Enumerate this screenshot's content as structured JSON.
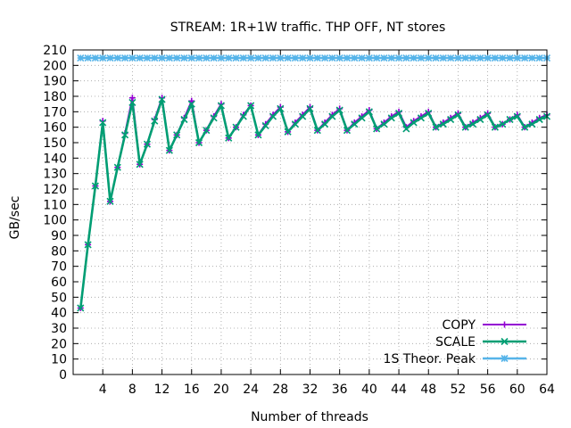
{
  "chart_data": {
    "type": "line",
    "title": "STREAM: 1R+1W traffic. THP OFF, NT stores",
    "xlabel": "Number of threads",
    "ylabel": "GB/sec",
    "xlim": [
      0,
      64
    ],
    "ylim": [
      0,
      210
    ],
    "xticks": [
      4,
      8,
      12,
      16,
      20,
      24,
      28,
      32,
      36,
      40,
      44,
      48,
      52,
      56,
      60,
      64
    ],
    "yticks": [
      0,
      10,
      20,
      30,
      40,
      50,
      60,
      70,
      80,
      90,
      100,
      110,
      120,
      130,
      140,
      150,
      160,
      170,
      180,
      190,
      200,
      210
    ],
    "grid": true,
    "legend_position": "bottom-right",
    "series": [
      {
        "name": "COPY",
        "color": "#9400d3",
        "marker": "plus",
        "x": [
          1,
          2,
          3,
          4,
          5,
          6,
          7,
          8,
          9,
          10,
          11,
          12,
          13,
          14,
          15,
          16,
          17,
          18,
          19,
          20,
          21,
          22,
          23,
          24,
          25,
          26,
          27,
          28,
          29,
          30,
          31,
          32,
          33,
          34,
          35,
          36,
          37,
          38,
          39,
          40,
          41,
          42,
          43,
          44,
          45,
          46,
          47,
          48,
          49,
          50,
          51,
          52,
          53,
          54,
          55,
          56,
          57,
          58,
          59,
          60,
          61,
          62,
          63,
          64
        ],
        "y": [
          43,
          84,
          122,
          164,
          112,
          134,
          156,
          179,
          136,
          149,
          165,
          179,
          145,
          155,
          166,
          177,
          150,
          158,
          167,
          175,
          153,
          160,
          168,
          174,
          155,
          162,
          168,
          173,
          157,
          163,
          168,
          173,
          158,
          163,
          168,
          172,
          158,
          163,
          167,
          171,
          159,
          163,
          167,
          170,
          160,
          164,
          167,
          170,
          160,
          163,
          166,
          169,
          160,
          163,
          166,
          169,
          160,
          162,
          165,
          168,
          160,
          163,
          166,
          168
        ]
      },
      {
        "name": "SCALE",
        "color": "#009e73",
        "marker": "cross",
        "x": [
          1,
          2,
          3,
          4,
          5,
          6,
          7,
          8,
          9,
          10,
          11,
          12,
          13,
          14,
          15,
          16,
          17,
          18,
          19,
          20,
          21,
          22,
          23,
          24,
          25,
          26,
          27,
          28,
          29,
          30,
          31,
          32,
          33,
          34,
          35,
          36,
          37,
          38,
          39,
          40,
          41,
          42,
          43,
          44,
          45,
          46,
          47,
          48,
          49,
          50,
          51,
          52,
          53,
          54,
          55,
          56,
          57,
          58,
          59,
          60,
          61,
          62,
          63,
          64
        ],
        "y": [
          43,
          84,
          122,
          163,
          112,
          134,
          155,
          176,
          136,
          149,
          164,
          178,
          145,
          155,
          165,
          175,
          150,
          158,
          166,
          174,
          153,
          160,
          167,
          174,
          155,
          161,
          167,
          172,
          157,
          162,
          167,
          172,
          158,
          162,
          167,
          171,
          158,
          162,
          166,
          170,
          159,
          162,
          166,
          169,
          159,
          163,
          166,
          169,
          160,
          162,
          165,
          168,
          160,
          162,
          165,
          168,
          160,
          162,
          165,
          167,
          160,
          162,
          165,
          167
        ]
      },
      {
        "name": "1S Theor. Peak",
        "color": "#56b4e9",
        "marker": "star",
        "x": [
          1,
          2,
          3,
          4,
          5,
          6,
          7,
          8,
          9,
          10,
          11,
          12,
          13,
          14,
          15,
          16,
          17,
          18,
          19,
          20,
          21,
          22,
          23,
          24,
          25,
          26,
          27,
          28,
          29,
          30,
          31,
          32,
          33,
          34,
          35,
          36,
          37,
          38,
          39,
          40,
          41,
          42,
          43,
          44,
          45,
          46,
          47,
          48,
          49,
          50,
          51,
          52,
          53,
          54,
          55,
          56,
          57,
          58,
          59,
          60,
          61,
          62,
          63,
          64
        ],
        "y": [
          204.8,
          204.8,
          204.8,
          204.8,
          204.8,
          204.8,
          204.8,
          204.8,
          204.8,
          204.8,
          204.8,
          204.8,
          204.8,
          204.8,
          204.8,
          204.8,
          204.8,
          204.8,
          204.8,
          204.8,
          204.8,
          204.8,
          204.8,
          204.8,
          204.8,
          204.8,
          204.8,
          204.8,
          204.8,
          204.8,
          204.8,
          204.8,
          204.8,
          204.8,
          204.8,
          204.8,
          204.8,
          204.8,
          204.8,
          204.8,
          204.8,
          204.8,
          204.8,
          204.8,
          204.8,
          204.8,
          204.8,
          204.8,
          204.8,
          204.8,
          204.8,
          204.8,
          204.8,
          204.8,
          204.8,
          204.8,
          204.8,
          204.8,
          204.8,
          204.8,
          204.8,
          204.8,
          204.8,
          204.8
        ]
      }
    ]
  }
}
